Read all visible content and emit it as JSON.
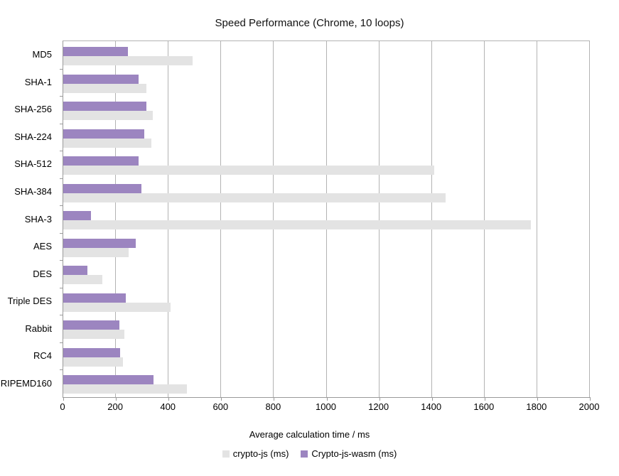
{
  "chart_data": {
    "type": "bar",
    "orientation": "horizontal",
    "title": "Speed Performance (Chrome, 10 loops)",
    "xlabel": "Average calculation time / ms",
    "xlim": [
      0,
      2000
    ],
    "x_ticks": [
      0,
      200,
      400,
      600,
      800,
      1000,
      1200,
      1400,
      1600,
      1800,
      2000
    ],
    "grid": true,
    "legend_position": "bottom",
    "categories": [
      "MD5",
      "SHA-1",
      "SHA-256",
      "SHA-224",
      "SHA-512",
      "SHA-384",
      "SHA-3",
      "AES",
      "DES",
      "Triple DES",
      "Rabbit",
      "RC4",
      "RIPEMD160"
    ],
    "series": [
      {
        "name": "crypto-js (ms)",
        "color": "#e3e3e3",
        "values": [
          490,
          316,
          341,
          334,
          1410,
          1451,
          1777,
          248,
          148,
          407,
          233,
          227,
          470
        ]
      },
      {
        "name": "Crypto-js-wasm (ms)",
        "color": "#9c85c0",
        "values": [
          245,
          286,
          317,
          308,
          287,
          297,
          104,
          276,
          92,
          237,
          212,
          216,
          343
        ]
      }
    ]
  }
}
